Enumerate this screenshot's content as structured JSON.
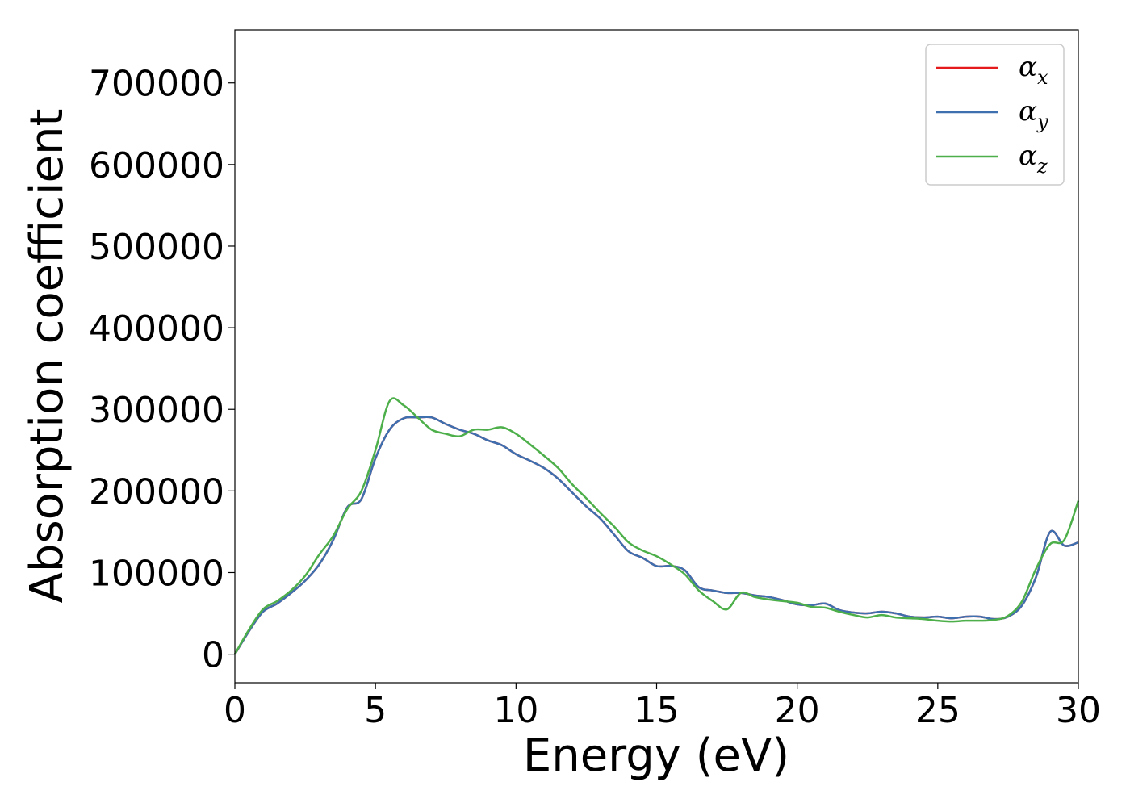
{
  "chart_data": {
    "type": "line",
    "title": "",
    "xlabel": "Energy (eV)",
    "ylabel": "Absorption coefficient",
    "xlim": [
      0,
      30
    ],
    "ylim": [
      -35000,
      765000
    ],
    "xticks": [
      0,
      5,
      10,
      15,
      20,
      25,
      30
    ],
    "yticks": [
      0,
      100000,
      200000,
      300000,
      400000,
      500000,
      600000,
      700000
    ],
    "grid": false,
    "legend": "top-right",
    "series": [
      {
        "name": "α_x",
        "label_main": "α",
        "label_sub": "x",
        "color": "#e41a1c",
        "x": [
          0,
          0.5,
          1,
          1.5,
          2,
          2.5,
          3,
          3.5,
          4,
          4.5,
          5,
          5.5,
          6,
          6.5,
          7,
          7.5,
          8,
          8.5,
          9,
          9.5,
          10,
          10.5,
          11,
          11.5,
          12,
          12.5,
          13,
          13.5,
          14,
          14.5,
          15,
          15.5,
          16,
          16.5,
          17,
          17.5,
          18,
          18.5,
          19,
          19.5,
          20,
          20.5,
          21,
          21.5,
          22,
          22.5,
          23,
          23.5,
          24,
          24.5,
          25,
          25.5,
          26,
          26.5,
          27,
          27.5,
          28,
          28.5,
          29,
          29.5,
          30
        ],
        "y": [
          0,
          28000,
          52000,
          62000,
          75000,
          90000,
          110000,
          140000,
          180000,
          190000,
          240000,
          275000,
          289000,
          290000,
          290000,
          282000,
          275000,
          270000,
          262000,
          256000,
          245000,
          237000,
          228000,
          215000,
          198000,
          181000,
          166000,
          146000,
          126000,
          118000,
          108000,
          108000,
          103000,
          82000,
          78000,
          75000,
          75000,
          72000,
          70000,
          66000,
          61000,
          60000,
          62000,
          54000,
          51000,
          50000,
          52000,
          50000,
          46000,
          45000,
          46000,
          44000,
          46000,
          46000,
          43000,
          46000,
          60000,
          95000,
          150000,
          133000,
          137000
        ]
      },
      {
        "name": "α_y",
        "label_main": "α",
        "label_sub": "y",
        "color": "#3e6fae",
        "x": [
          0,
          0.5,
          1,
          1.5,
          2,
          2.5,
          3,
          3.5,
          4,
          4.5,
          5,
          5.5,
          6,
          6.5,
          7,
          7.5,
          8,
          8.5,
          9,
          9.5,
          10,
          10.5,
          11,
          11.5,
          12,
          12.5,
          13,
          13.5,
          14,
          14.5,
          15,
          15.5,
          16,
          16.5,
          17,
          17.5,
          18,
          18.5,
          19,
          19.5,
          20,
          20.5,
          21,
          21.5,
          22,
          22.5,
          23,
          23.5,
          24,
          24.5,
          25,
          25.5,
          26,
          26.5,
          27,
          27.5,
          28,
          28.5,
          29,
          29.5,
          30
        ],
        "y": [
          0,
          28000,
          52000,
          62000,
          75000,
          90000,
          110000,
          140000,
          180000,
          190000,
          240000,
          275000,
          289000,
          290000,
          290000,
          282000,
          275000,
          270000,
          262000,
          256000,
          245000,
          237000,
          228000,
          215000,
          198000,
          181000,
          166000,
          146000,
          126000,
          118000,
          108000,
          108000,
          103000,
          82000,
          78000,
          75000,
          75000,
          72000,
          70000,
          66000,
          61000,
          60000,
          62000,
          54000,
          51000,
          50000,
          52000,
          50000,
          46000,
          45000,
          46000,
          44000,
          46000,
          46000,
          43000,
          46000,
          60000,
          95000,
          150000,
          133000,
          137000
        ]
      },
      {
        "name": "α_z",
        "label_main": "α",
        "label_sub": "z",
        "color": "#4daf4a",
        "x": [
          0,
          0.5,
          1,
          1.5,
          2,
          2.5,
          3,
          3.5,
          4,
          4.5,
          5,
          5.5,
          6,
          6.5,
          7,
          7.5,
          8,
          8.5,
          9,
          9.5,
          10,
          10.5,
          11,
          11.5,
          12,
          12.5,
          13,
          13.5,
          14,
          14.5,
          15,
          15.5,
          16,
          16.5,
          17,
          17.5,
          18,
          18.5,
          19,
          19.5,
          20,
          20.5,
          21,
          21.5,
          22,
          22.5,
          23,
          23.5,
          24,
          24.5,
          25,
          25.5,
          26,
          26.5,
          27,
          27.5,
          28,
          28.5,
          29,
          29.5,
          30
        ],
        "y": [
          0,
          30000,
          55000,
          65000,
          78000,
          96000,
          122000,
          145000,
          178000,
          200000,
          250000,
          310000,
          305000,
          290000,
          275000,
          270000,
          267000,
          275000,
          275000,
          278000,
          270000,
          257000,
          243000,
          228000,
          208000,
          191000,
          173000,
          156000,
          137000,
          127000,
          120000,
          110000,
          98000,
          78000,
          65000,
          55000,
          75000,
          70000,
          67000,
          65000,
          63000,
          58000,
          57000,
          52000,
          48000,
          45000,
          48000,
          45000,
          44000,
          43000,
          41000,
          40000,
          41000,
          41000,
          42000,
          47000,
          65000,
          105000,
          135000,
          140000,
          188000
        ]
      }
    ]
  }
}
